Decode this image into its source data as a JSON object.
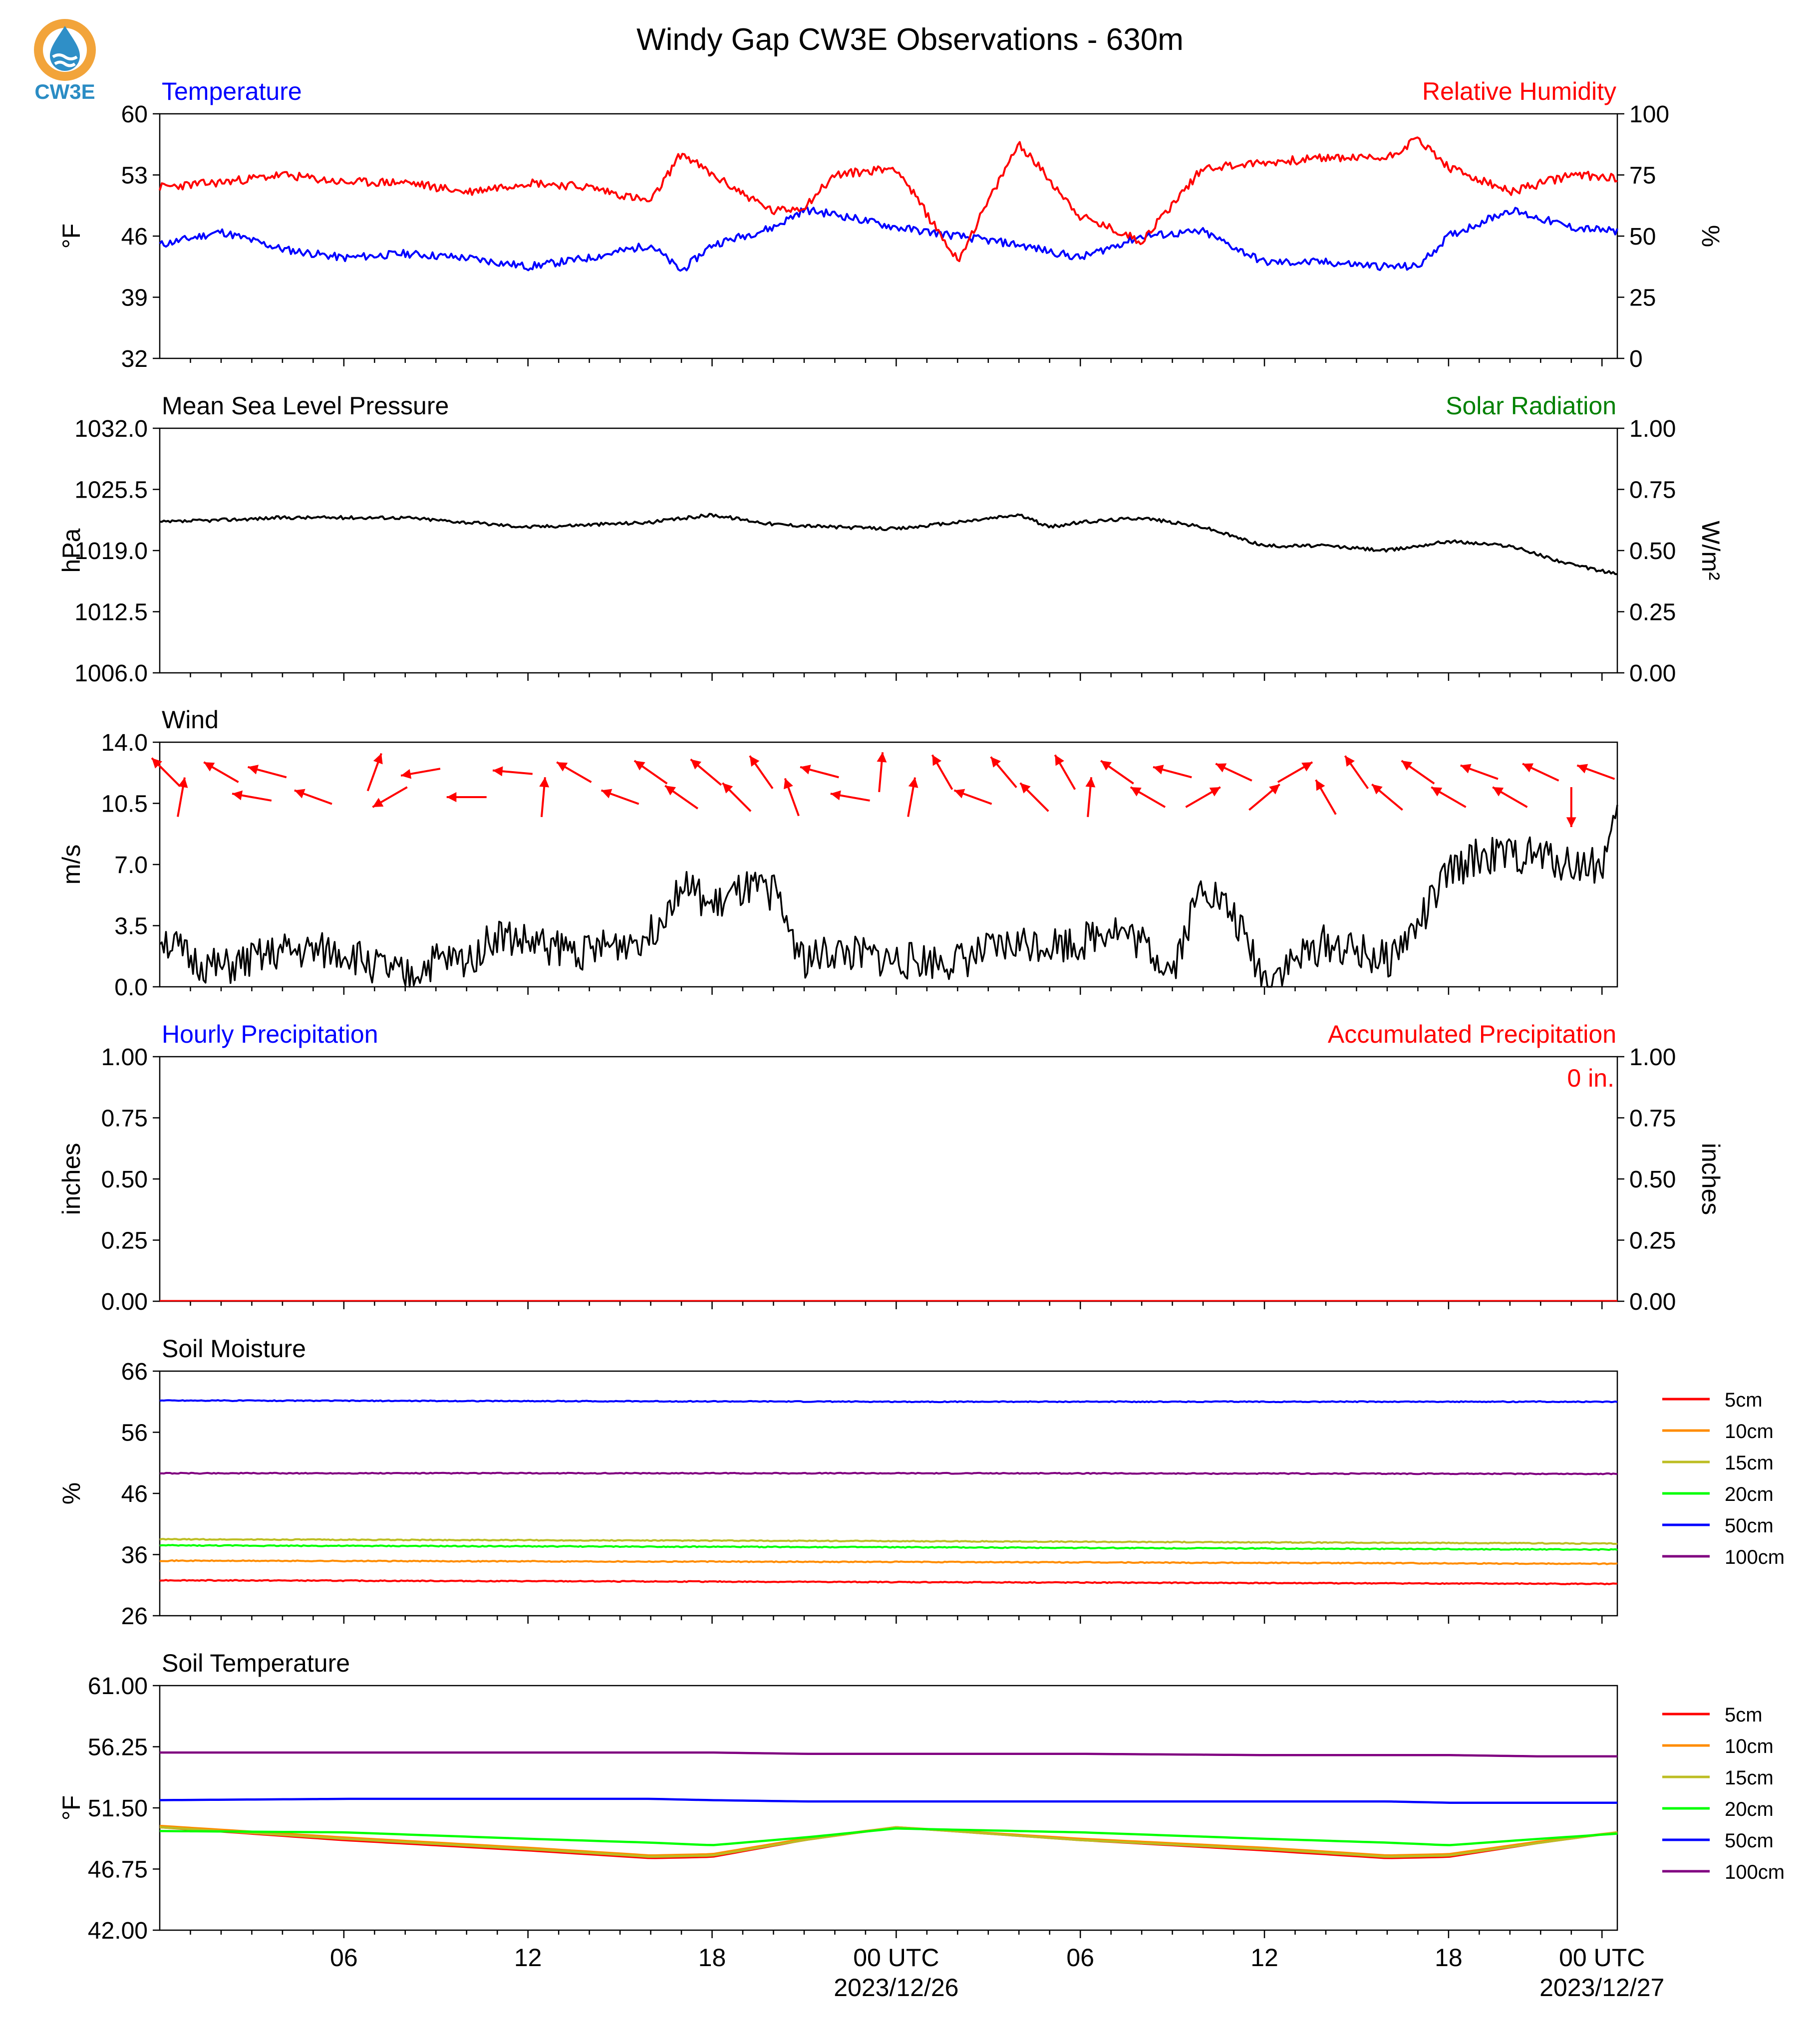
{
  "title": "Windy Gap CW3E Observations - 630m",
  "logo": {
    "text": "CW3E",
    "icon": "cw3e-logo-icon",
    "colors": {
      "sun": "#f2a43a",
      "drop": "#2f8fc7",
      "text": "#2a8cc4"
    }
  },
  "colors": {
    "temperature": "#0000ff",
    "humidity": "#ff0000",
    "pressure": "#000000",
    "solar": "#008000",
    "wind_arrows": "#ff0000",
    "wind_speed": "#000000"
  },
  "time_axis": {
    "ticks": [
      "06",
      "12",
      "18",
      "00 UTC",
      "06",
      "12",
      "18",
      "00 UTC"
    ],
    "dates": [
      "2023/12/26",
      "2023/12/27"
    ]
  },
  "panels": {
    "temp_rh": {
      "left_title": "Temperature",
      "right_title": "Relative Humidity",
      "left_unit": "°F",
      "right_unit": "%",
      "left_ticks": [
        "60",
        "53",
        "46",
        "39",
        "32"
      ],
      "right_ticks": [
        "100",
        "75",
        "50",
        "25",
        "0"
      ]
    },
    "pressure": {
      "left_title": "Mean Sea Level Pressure",
      "right_title": "Solar Radiation",
      "left_unit": "hPa",
      "right_unit": "W/m²",
      "left_ticks": [
        "1032.0",
        "1025.5",
        "1019.0",
        "1012.5",
        "1006.0"
      ],
      "right_ticks": [
        "1.00",
        "0.75",
        "0.50",
        "0.25",
        "0.00"
      ]
    },
    "wind": {
      "left_title": "Wind",
      "left_unit": "m/s",
      "left_ticks": [
        "14.0",
        "10.5",
        "7.0",
        "3.5",
        "0.0"
      ]
    },
    "precip": {
      "left_title": "Hourly Precipitation",
      "right_title": "Accumulated Precipitation",
      "accum_label": "0 in.",
      "left_unit": "inches",
      "right_unit": "inches",
      "left_ticks": [
        "1.00",
        "0.75",
        "0.50",
        "0.25",
        "0.00"
      ],
      "right_ticks": [
        "1.00",
        "0.75",
        "0.50",
        "0.25",
        "0.00"
      ]
    },
    "soil_moisture": {
      "left_title": "Soil Moisture",
      "left_unit": "%",
      "left_ticks": [
        "66",
        "56",
        "46",
        "36",
        "26"
      ],
      "legend": [
        "5cm",
        "10cm",
        "15cm",
        "20cm",
        "50cm",
        "100cm"
      ]
    },
    "soil_temp": {
      "left_title": "Soil Temperature",
      "left_unit": "°F",
      "left_ticks": [
        "61.00",
        "56.25",
        "51.50",
        "46.75",
        "42.00"
      ],
      "legend": [
        "5cm",
        "10cm",
        "15cm",
        "20cm",
        "50cm",
        "100cm"
      ]
    }
  },
  "chart_data": [
    {
      "type": "line",
      "title": "Temperature / Relative Humidity",
      "x_hours": [
        0,
        2,
        4,
        6,
        8,
        10,
        12,
        14,
        16,
        17,
        18,
        20,
        21,
        22,
        24,
        26,
        28,
        30,
        32,
        34,
        36,
        38,
        40,
        41,
        42,
        44,
        46,
        47.5
      ],
      "series": [
        {
          "name": "Temperature",
          "axis": "left",
          "unit": "°F",
          "ylim": [
            32,
            60
          ],
          "values": [
            45,
            46.5,
            44.5,
            43.5,
            44,
            43.5,
            42.5,
            43.5,
            45,
            42,
            45,
            47,
            49,
            48.5,
            47,
            46,
            45,
            43.5,
            46,
            46.5,
            43,
            43,
            42.5,
            42.5,
            46,
            49,
            47,
            46.5
          ]
        },
        {
          "name": "Relative Humidity",
          "axis": "right",
          "unit": "%",
          "ylim": [
            0,
            100
          ],
          "values": [
            70,
            72,
            75,
            72,
            72,
            68,
            72,
            70,
            64,
            84,
            75,
            60,
            62,
            75,
            78,
            40,
            88,
            58,
            48,
            78,
            80,
            82,
            82,
            90,
            78,
            68,
            75,
            74
          ]
        }
      ]
    },
    {
      "type": "line",
      "title": "Mean Sea Level Pressure",
      "x_hours": [
        0,
        4,
        8,
        10,
        12,
        16,
        18,
        20,
        22,
        24,
        26,
        28,
        29,
        30,
        32,
        34,
        36,
        38,
        40,
        42,
        44,
        46,
        47.5
      ],
      "series": [
        {
          "name": "Mean Sea Level Pressure",
          "axis": "left",
          "unit": "hPa",
          "ylim": [
            1006,
            1032
          ],
          "values": [
            1022,
            1022.5,
            1022.5,
            1022,
            1021.5,
            1022,
            1022.8,
            1021.8,
            1021.5,
            1021.3,
            1022,
            1022.8,
            1021.5,
            1022,
            1022.5,
            1021.5,
            1019.5,
            1019.5,
            1019,
            1020,
            1019.5,
            1017.5,
            1016.5
          ]
        }
      ]
    },
    {
      "type": "line",
      "title": "Wind",
      "x_hours": [
        0,
        1,
        2,
        4,
        6,
        8,
        9,
        10,
        11,
        12,
        14,
        16,
        17,
        18,
        19,
        20,
        21,
        22,
        24,
        26,
        28,
        30,
        31,
        32,
        33,
        34,
        35,
        36,
        38,
        40,
        41,
        42,
        43,
        44,
        45,
        46,
        47,
        47.5
      ],
      "series": [
        {
          "name": "Wind Speed",
          "axis": "left",
          "unit": "m/s",
          "ylim": [
            0,
            14
          ],
          "values": [
            3,
            1.5,
            1,
            2,
            2,
            0.5,
            1.5,
            1.5,
            3,
            2.5,
            2,
            3,
            6,
            4.5,
            5.5,
            5.5,
            1.5,
            2,
            1.5,
            1.5,
            2.5,
            2.5,
            3.5,
            2.5,
            1,
            6,
            4,
            0.5,
            2.5,
            1.5,
            3.5,
            6.5,
            7.5,
            7.5,
            7.5,
            7,
            7,
            9.5
          ]
        }
      ]
    },
    {
      "type": "line",
      "title": "Hourly Precipitation / Accumulated Precipitation",
      "x_hours": [
        0,
        47.5
      ],
      "series": [
        {
          "name": "Hourly Precipitation",
          "axis": "left",
          "unit": "inches",
          "ylim": [
            0,
            1
          ],
          "values": [
            0,
            0
          ]
        },
        {
          "name": "Accumulated Precipitation",
          "axis": "right",
          "unit": "inches",
          "ylim": [
            0,
            1
          ],
          "values": [
            0,
            0
          ]
        }
      ]
    },
    {
      "type": "line",
      "title": "Soil Moisture",
      "x_hours": [
        0,
        24,
        47.5
      ],
      "ylim": [
        26,
        66
      ],
      "series": [
        {
          "name": "5cm",
          "color": "#ff0000",
          "values": [
            31.8,
            31.5,
            31.2
          ]
        },
        {
          "name": "10cm",
          "color": "#ff8c00",
          "values": [
            35,
            34.8,
            34.5
          ]
        },
        {
          "name": "15cm",
          "color": "#bcbd22",
          "values": [
            38.5,
            38.2,
            37.8
          ]
        },
        {
          "name": "20cm",
          "color": "#00ff00",
          "values": [
            37.5,
            37.2,
            36.8
          ]
        },
        {
          "name": "50cm",
          "color": "#0000ff",
          "values": [
            61.2,
            61,
            61
          ]
        },
        {
          "name": "100cm",
          "color": "#800080",
          "values": [
            49.3,
            49.3,
            49.2
          ]
        }
      ]
    },
    {
      "type": "line",
      "title": "Soil Temperature",
      "x_hours": [
        0,
        6,
        12,
        16,
        18,
        21,
        24,
        30,
        36,
        40,
        42,
        45,
        47.5
      ],
      "ylim": [
        42,
        61
      ],
      "series": [
        {
          "name": "5cm",
          "color": "#ff0000",
          "values": [
            50,
            49,
            48.2,
            47.6,
            47.7,
            49,
            50,
            49,
            48.2,
            47.6,
            47.7,
            48.8,
            49.6
          ]
        },
        {
          "name": "10cm",
          "color": "#ff8c00",
          "values": [
            50.1,
            49.2,
            48.4,
            47.8,
            47.9,
            49.1,
            50,
            49.1,
            48.4,
            47.8,
            47.9,
            48.9,
            49.6
          ]
        },
        {
          "name": "15cm",
          "color": "#bcbd22",
          "values": [
            50,
            49.1,
            48.3,
            47.7,
            47.8,
            49,
            50,
            49,
            48.3,
            47.7,
            47.8,
            48.8,
            49.6
          ]
        },
        {
          "name": "20cm",
          "color": "#00ff00",
          "values": [
            49.7,
            49.6,
            49.1,
            48.8,
            48.6,
            49.2,
            49.9,
            49.6,
            49.1,
            48.8,
            48.6,
            49.1,
            49.5
          ]
        },
        {
          "name": "50cm",
          "color": "#0000ff",
          "values": [
            52.1,
            52.2,
            52.2,
            52.2,
            52.1,
            52,
            52,
            52,
            52,
            52,
            51.9,
            51.9,
            51.9
          ]
        },
        {
          "name": "100cm",
          "color": "#800080",
          "values": [
            55.8,
            55.8,
            55.8,
            55.8,
            55.8,
            55.7,
            55.7,
            55.7,
            55.6,
            55.6,
            55.6,
            55.5,
            55.5
          ]
        }
      ]
    },
    {
      "type": "vector",
      "title": "Wind direction arrows",
      "x_hours": [
        0.2,
        0.7,
        2,
        3,
        3.5,
        5,
        7,
        7.5,
        8.5,
        10,
        11.5,
        12.5,
        13.5,
        15,
        16,
        17,
        17.8,
        18.8,
        19.6,
        20.6,
        21.5,
        22.5,
        23.5,
        24.5,
        25.5,
        26.5,
        27.5,
        28.5,
        29.5,
        30.3,
        31.2,
        32.2,
        33,
        34,
        35,
        36,
        37,
        38,
        39,
        40,
        41,
        42,
        43,
        44,
        45,
        46,
        46.8
      ],
      "direction_deg": [
        315,
        10,
        300,
        280,
        285,
        290,
        20,
        240,
        260,
        270,
        275,
        5,
        300,
        290,
        305,
        305,
        310,
        315,
        325,
        340,
        285,
        280,
        5,
        10,
        330,
        290,
        320,
        315,
        330,
        5,
        305,
        300,
        285,
        60,
        295,
        50,
        60,
        330,
        325,
        310,
        305,
        300,
        290,
        300,
        295,
        180,
        290
      ]
    }
  ]
}
